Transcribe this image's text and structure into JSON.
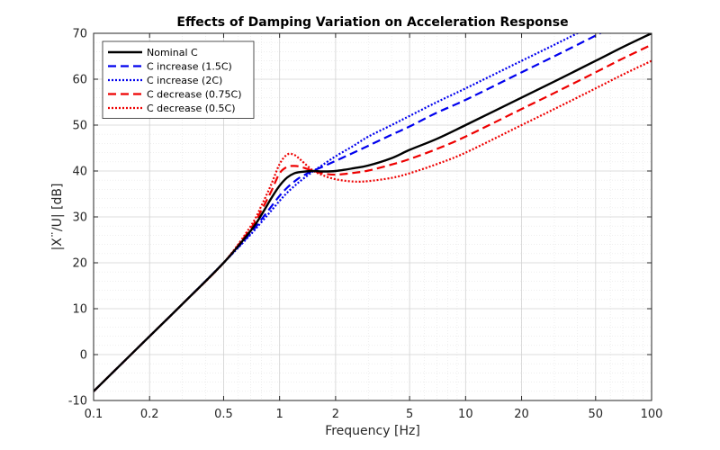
{
  "chart_data": {
    "type": "line",
    "title": "Effects of Damping Variation on Acceleration Response",
    "xlabel": "Frequency [Hz]",
    "ylabel": "|X¨/U| [dB]",
    "x_scale": "log",
    "xlim": [
      0.1,
      100
    ],
    "ylim": [
      -10,
      70
    ],
    "x_ticks": [
      0.1,
      0.2,
      0.5,
      1,
      2,
      5,
      10,
      20,
      50,
      100
    ],
    "x_tick_labels": [
      "0.1",
      "0.2",
      "0.5",
      "1",
      "2",
      "5",
      "10",
      "20",
      "50",
      "100"
    ],
    "y_ticks": [
      -10,
      0,
      10,
      20,
      30,
      40,
      50,
      60,
      70
    ],
    "y_tick_labels": [
      "-10",
      "0",
      "10",
      "20",
      "30",
      "40",
      "50",
      "60",
      "70"
    ],
    "grid": true,
    "minor_grid": true,
    "legend_position": "top-left",
    "x": [
      0.1,
      0.2,
      0.3,
      0.5,
      0.7,
      0.8,
      0.9,
      1.0,
      1.1,
      1.2,
      1.3,
      1.5,
      1.7,
      2.0,
      2.5,
      3,
      4,
      5,
      7,
      10,
      20,
      30,
      50,
      70,
      100
    ],
    "series": [
      {
        "name": "Nominal C",
        "color": "#000000",
        "style": "solid",
        "values": [
          -8,
          4,
          11,
          20,
          27,
          30.5,
          34,
          36.8,
          38.6,
          39.5,
          39.8,
          40.0,
          39.9,
          40.0,
          40.6,
          41.2,
          42.8,
          44.6,
          47.0,
          50.0,
          56.0,
          59.5,
          64.0,
          67.0,
          70.0
        ]
      },
      {
        "name": "C increase (1.5C)",
        "color": "#0000ee",
        "style": "dashed",
        "values": [
          -8,
          4,
          11,
          20,
          26.5,
          29.5,
          32.2,
          34.6,
          36.4,
          37.7,
          38.7,
          40.0,
          40.9,
          42.2,
          44.0,
          45.5,
          47.9,
          49.7,
          52.7,
          55.5,
          61.5,
          65.0,
          69.5,
          72.5,
          75.5
        ]
      },
      {
        "name": "C increase (2C)",
        "color": "#0000ee",
        "style": "dotted",
        "values": [
          -8,
          4,
          11,
          20,
          26.2,
          28.9,
          31.3,
          33.5,
          35.3,
          36.7,
          37.9,
          39.8,
          41.3,
          43.2,
          45.5,
          47.5,
          50.0,
          52.0,
          55.0,
          58.0,
          64.0,
          67.5,
          72.0,
          75.0,
          78.0
        ]
      },
      {
        "name": "C decrease (0.75C)",
        "color": "#ee0000",
        "style": "dashed",
        "values": [
          -8,
          4,
          11,
          20,
          27.5,
          31.5,
          35.5,
          39.5,
          40.9,
          41.1,
          40.9,
          40.1,
          39.5,
          39.2,
          39.6,
          40.1,
          41.4,
          42.6,
          44.8,
          47.5,
          53.5,
          57.0,
          61.5,
          64.5,
          67.5
        ]
      },
      {
        "name": "C decrease (0.5C)",
        "color": "#ee0000",
        "style": "dotted",
        "values": [
          -8,
          4,
          11,
          20,
          28,
          32.5,
          37,
          41.5,
          43.6,
          43.5,
          42.4,
          40.2,
          39.1,
          38.2,
          37.7,
          37.8,
          38.5,
          39.5,
          41.5,
          44.0,
          50.0,
          53.5,
          58.0,
          61.0,
          64.0
        ]
      }
    ]
  }
}
